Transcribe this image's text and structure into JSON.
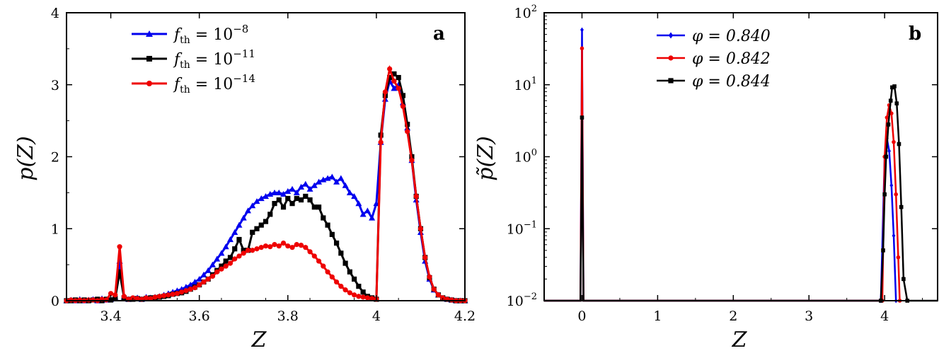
{
  "chart_data": [
    {
      "panel_label": "a",
      "type": "line",
      "xlabel": "Z",
      "ylabel": "p(Z)",
      "xlim": [
        3.3,
        4.2
      ],
      "ylim": [
        0,
        4
      ],
      "xticks": [
        "3.4",
        "3.6",
        "3.8",
        "4",
        "4.2"
      ],
      "yticks": [
        "0",
        "1",
        "2",
        "3",
        "4"
      ],
      "legend_position": "top-left",
      "series": [
        {
          "legend_label": "f_th = 10^-8",
          "legend_text": "f",
          "legend_sub": "th",
          "legend_rest": " = 10",
          "legend_exp": "−8",
          "color": "#0000ee",
          "marker": "triangle",
          "x": [
            3.3,
            3.31,
            3.32,
            3.33,
            3.34,
            3.35,
            3.36,
            3.37,
            3.38,
            3.39,
            3.4,
            3.41,
            3.42,
            3.43,
            3.44,
            3.45,
            3.46,
            3.47,
            3.48,
            3.49,
            3.5,
            3.51,
            3.52,
            3.53,
            3.54,
            3.55,
            3.56,
            3.57,
            3.58,
            3.59,
            3.6,
            3.61,
            3.62,
            3.63,
            3.64,
            3.65,
            3.66,
            3.67,
            3.68,
            3.69,
            3.7,
            3.71,
            3.72,
            3.73,
            3.74,
            3.75,
            3.76,
            3.77,
            3.78,
            3.79,
            3.8,
            3.81,
            3.82,
            3.83,
            3.84,
            3.85,
            3.86,
            3.87,
            3.88,
            3.89,
            3.9,
            3.91,
            3.92,
            3.93,
            3.94,
            3.95,
            3.96,
            3.97,
            3.98,
            3.99,
            4.0,
            4.01,
            4.02,
            4.03,
            4.04,
            4.05,
            4.06,
            4.07,
            4.08,
            4.09,
            4.1,
            4.11,
            4.12,
            4.13,
            4.14,
            4.15,
            4.16,
            4.17,
            4.18,
            4.19,
            4.2
          ],
          "y": [
            0,
            0.01,
            0,
            0.02,
            0,
            0.01,
            0.02,
            0,
            0.03,
            0.01,
            0.02,
            0.05,
            0.55,
            0.05,
            0.02,
            0.03,
            0.04,
            0.02,
            0.05,
            0.04,
            0.05,
            0.06,
            0.08,
            0.1,
            0.12,
            0.14,
            0.16,
            0.19,
            0.22,
            0.26,
            0.3,
            0.36,
            0.42,
            0.5,
            0.58,
            0.66,
            0.75,
            0.85,
            0.95,
            1.05,
            1.15,
            1.25,
            1.32,
            1.38,
            1.42,
            1.45,
            1.48,
            1.5,
            1.5,
            1.48,
            1.52,
            1.55,
            1.5,
            1.58,
            1.62,
            1.55,
            1.6,
            1.65,
            1.68,
            1.7,
            1.72,
            1.65,
            1.7,
            1.6,
            1.5,
            1.45,
            1.35,
            1.2,
            1.25,
            1.15,
            1.35,
            2.2,
            2.8,
            3.05,
            2.95,
            3.0,
            2.75,
            2.4,
            1.95,
            1.4,
            0.95,
            0.55,
            0.3,
            0.15,
            0.08,
            0.03,
            0.02,
            0.01,
            0,
            0,
            0
          ]
        },
        {
          "legend_label": "f_th = 10^-11",
          "legend_text": "f",
          "legend_sub": "th",
          "legend_rest": " = 10",
          "legend_exp": "−11",
          "color": "#000000",
          "marker": "square",
          "x": [
            3.3,
            3.31,
            3.32,
            3.33,
            3.34,
            3.35,
            3.36,
            3.37,
            3.38,
            3.39,
            3.4,
            3.41,
            3.42,
            3.43,
            3.44,
            3.45,
            3.46,
            3.47,
            3.48,
            3.49,
            3.5,
            3.51,
            3.52,
            3.53,
            3.54,
            3.55,
            3.56,
            3.57,
            3.58,
            3.59,
            3.6,
            3.61,
            3.62,
            3.63,
            3.64,
            3.65,
            3.66,
            3.67,
            3.68,
            3.69,
            3.7,
            3.71,
            3.72,
            3.73,
            3.74,
            3.75,
            3.76,
            3.77,
            3.78,
            3.79,
            3.8,
            3.81,
            3.82,
            3.83,
            3.84,
            3.85,
            3.86,
            3.87,
            3.88,
            3.89,
            3.9,
            3.91,
            3.92,
            3.93,
            3.94,
            3.95,
            3.96,
            3.97,
            3.98,
            3.99,
            4.0,
            4.01,
            4.02,
            4.03,
            4.04,
            4.05,
            4.06,
            4.07,
            4.08,
            4.09,
            4.1,
            4.11,
            4.12,
            4.13,
            4.14,
            4.15,
            4.16,
            4.17,
            4.18,
            4.19,
            4.2
          ],
          "y": [
            0,
            0,
            0.01,
            0,
            0.01,
            0,
            0.01,
            0.02,
            0,
            0.02,
            0.01,
            0.03,
            0.4,
            0.04,
            0.02,
            0.02,
            0.03,
            0.02,
            0.03,
            0.04,
            0.04,
            0.05,
            0.06,
            0.07,
            0.09,
            0.1,
            0.11,
            0.13,
            0.16,
            0.19,
            0.22,
            0.26,
            0.3,
            0.36,
            0.42,
            0.48,
            0.55,
            0.6,
            0.72,
            0.85,
            0.7,
            0.7,
            0.95,
            1.0,
            1.05,
            1.1,
            1.2,
            1.35,
            1.4,
            1.3,
            1.42,
            1.35,
            1.42,
            1.4,
            1.45,
            1.4,
            1.3,
            1.3,
            1.15,
            1.05,
            0.92,
            0.8,
            0.66,
            0.52,
            0.4,
            0.3,
            0.2,
            0.12,
            0.06,
            0.04,
            0.02,
            2.3,
            2.85,
            3.1,
            3.15,
            3.1,
            2.85,
            2.45,
            2.0,
            1.45,
            1.0,
            0.6,
            0.32,
            0.16,
            0.08,
            0.04,
            0.02,
            0.01,
            0,
            0,
            0
          ]
        },
        {
          "legend_label": "f_th = 10^-14",
          "legend_text": "f",
          "legend_sub": "th",
          "legend_rest": " = 10",
          "legend_exp": "−14",
          "color": "#ee0000",
          "marker": "circle",
          "x": [
            3.3,
            3.31,
            3.32,
            3.33,
            3.34,
            3.35,
            3.36,
            3.37,
            3.38,
            3.39,
            3.4,
            3.41,
            3.42,
            3.43,
            3.44,
            3.45,
            3.46,
            3.47,
            3.48,
            3.49,
            3.5,
            3.51,
            3.52,
            3.53,
            3.54,
            3.55,
            3.56,
            3.57,
            3.58,
            3.59,
            3.6,
            3.61,
            3.62,
            3.63,
            3.64,
            3.65,
            3.66,
            3.67,
            3.68,
            3.69,
            3.7,
            3.71,
            3.72,
            3.73,
            3.74,
            3.75,
            3.76,
            3.77,
            3.78,
            3.79,
            3.8,
            3.81,
            3.82,
            3.83,
            3.84,
            3.85,
            3.86,
            3.87,
            3.88,
            3.89,
            3.9,
            3.91,
            3.92,
            3.93,
            3.94,
            3.95,
            3.96,
            3.97,
            3.98,
            3.99,
            4.0,
            4.01,
            4.02,
            4.03,
            4.04,
            4.05,
            4.06,
            4.07,
            4.08,
            4.09,
            4.1,
            4.11,
            4.12,
            4.13,
            4.14,
            4.15,
            4.16,
            4.17,
            4.18,
            4.19,
            4.2
          ],
          "y": [
            0,
            0.01,
            0,
            0.01,
            0,
            0.01,
            0.01,
            0,
            0.02,
            0.01,
            0.1,
            0.08,
            0.75,
            0.06,
            0.02,
            0.04,
            0.03,
            0.02,
            0.04,
            0.03,
            0.05,
            0.06,
            0.07,
            0.08,
            0.09,
            0.1,
            0.12,
            0.14,
            0.16,
            0.18,
            0.22,
            0.26,
            0.3,
            0.34,
            0.4,
            0.44,
            0.48,
            0.52,
            0.58,
            0.62,
            0.66,
            0.7,
            0.7,
            0.72,
            0.74,
            0.76,
            0.75,
            0.78,
            0.76,
            0.8,
            0.76,
            0.74,
            0.78,
            0.77,
            0.74,
            0.68,
            0.62,
            0.55,
            0.48,
            0.4,
            0.33,
            0.26,
            0.2,
            0.15,
            0.11,
            0.08,
            0.06,
            0.05,
            0.04,
            0.03,
            0.02,
            2.2,
            2.9,
            3.22,
            3.05,
            2.95,
            2.7,
            2.35,
            1.95,
            1.45,
            1.0,
            0.6,
            0.33,
            0.16,
            0.08,
            0.04,
            0.02,
            0.01,
            0,
            0,
            0
          ]
        }
      ]
    },
    {
      "panel_label": "b",
      "type": "line",
      "xlabel": "Z",
      "ylabel": "p̃(Z)",
      "yscale": "log",
      "xlim": [
        -0.5,
        4.7
      ],
      "ylim": [
        0.01,
        100
      ],
      "xticks": [
        "0",
        "1",
        "2",
        "3",
        "4"
      ],
      "yticks": [
        {
          "base": "10",
          "exp": "2"
        },
        {
          "base": "10",
          "exp": "1"
        },
        {
          "base": "10",
          "exp": "0"
        },
        {
          "base": "10",
          "exp": "−1"
        },
        {
          "base": "10",
          "exp": "−2"
        }
      ],
      "legend_position": "top-center",
      "series": [
        {
          "legend_label": "φ = 0.840",
          "color": "#0000ee",
          "marker": "diamond",
          "x": [
            -0.5,
            -0.02,
            0,
            0.02,
            3.95,
            4.0,
            4.03,
            4.06,
            4.09,
            4.12,
            4.15
          ],
          "y": [
            0.01,
            0.01,
            58,
            0.01,
            0.01,
            1.0,
            1.8,
            1.2,
            0.4,
            0.08,
            0.01
          ]
        },
        {
          "legend_label": "φ = 0.842",
          "color": "#ee0000",
          "marker": "circle",
          "x": [
            -0.5,
            -0.02,
            0,
            0.02,
            3.97,
            4.0,
            4.03,
            4.06,
            4.09,
            4.12,
            4.15,
            4.18,
            4.2
          ],
          "y": [
            0.01,
            0.01,
            32,
            0.01,
            0.01,
            1.0,
            3.5,
            5.2,
            4.0,
            1.6,
            0.3,
            0.04,
            0.01
          ]
        },
        {
          "legend_label": "φ = 0.844",
          "color": "#000000",
          "marker": "square",
          "x": [
            -0.5,
            -0.02,
            0,
            0.02,
            3.95,
            3.98,
            4.0,
            4.02,
            4.05,
            4.08,
            4.1,
            4.13,
            4.16,
            4.19,
            4.22,
            4.25,
            4.3,
            4.4,
            4.5,
            4.6,
            4.7
          ],
          "y": [
            0.01,
            0.01,
            3.5,
            0.01,
            0.01,
            0.05,
            0.3,
            1.0,
            2.8,
            6.0,
            9.2,
            9.5,
            5.5,
            1.5,
            0.2,
            0.02,
            0.01,
            0.01,
            0.01,
            0.01,
            0.01
          ]
        }
      ]
    }
  ]
}
